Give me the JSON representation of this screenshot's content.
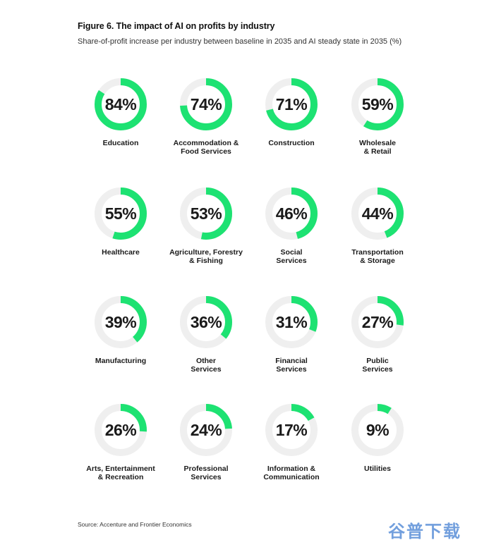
{
  "figure": {
    "title": "Figure 6. The impact of AI on profits by industry",
    "subtitle": "Share-of-profit increase per industry between baseline in 2035 and AI steady state in 2035 (%)",
    "source": "Source: Accenture and Frontier Economics"
  },
  "watermark": "谷普下载",
  "colors": {
    "accent": "#1de272",
    "track": "#efefef"
  },
  "chart_data": {
    "type": "pie",
    "title": "Figure 6. The impact of AI on profits by industry",
    "unit": "%",
    "categories": [
      "Education",
      "Accommodation &\nFood Services",
      "Construction",
      "Wholesale\n& Retail",
      "Healthcare",
      "Agriculture, Forestry\n& Fishing",
      "Social\nServices",
      "Transportation\n& Storage",
      "Manufacturing",
      "Other\nServices",
      "Financial\nServices",
      "Public\nServices",
      "Arts, Entertainment\n& Recreation",
      "Professional\nServices",
      "Information &\nCommunication",
      "Utilities"
    ],
    "values": [
      84,
      74,
      71,
      59,
      55,
      53,
      46,
      44,
      39,
      36,
      31,
      27,
      26,
      24,
      17,
      9
    ],
    "labels": [
      "84%",
      "74%",
      "71%",
      "59%",
      "55%",
      "53%",
      "46%",
      "44%",
      "39%",
      "36%",
      "31%",
      "27%",
      "26%",
      "24%",
      "17%",
      "9%"
    ]
  }
}
